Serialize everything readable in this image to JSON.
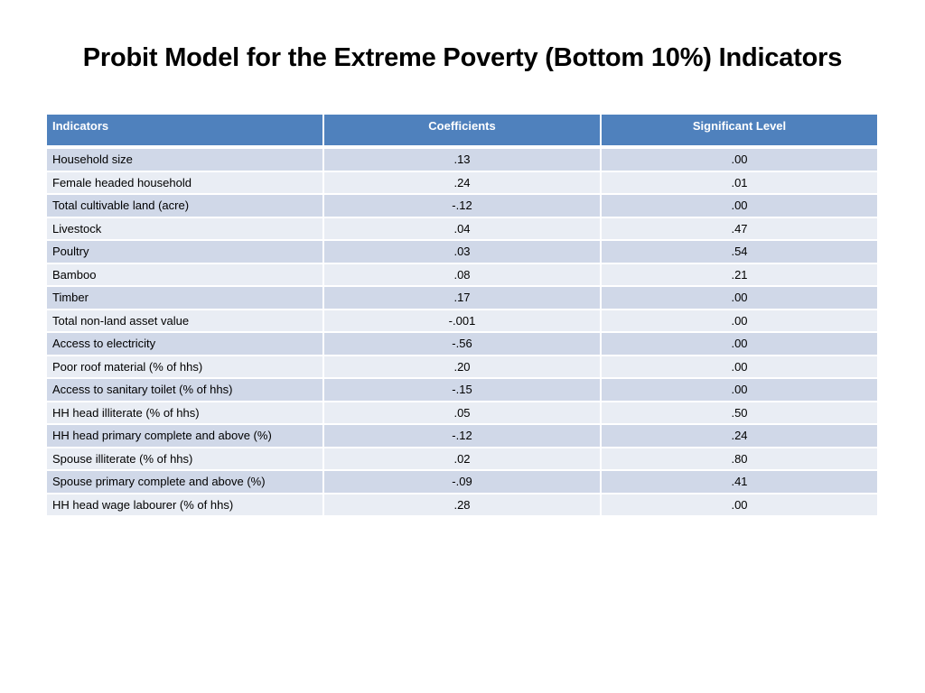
{
  "title": "Probit Model for the Extreme Poverty (Bottom 10%) Indicators",
  "table": {
    "headers": [
      "Indicators",
      "Coefficients",
      "Significant Level"
    ],
    "rows": [
      [
        "Household size",
        ".13",
        ".00"
      ],
      [
        "Female headed household",
        ".24",
        ".01"
      ],
      [
        "Total cultivable land (acre)",
        "-.12",
        ".00"
      ],
      [
        "Livestock",
        ".04",
        ".47"
      ],
      [
        "Poultry",
        ".03",
        ".54"
      ],
      [
        "Bamboo",
        ".08",
        ".21"
      ],
      [
        "Timber",
        ".17",
        ".00"
      ],
      [
        "Total non-land asset value",
        "-.001",
        ".00"
      ],
      [
        "Access to electricity",
        "-.56",
        ".00"
      ],
      [
        "Poor roof material (% of hhs)",
        ".20",
        ".00"
      ],
      [
        "Access to sanitary toilet (% of hhs)",
        "-.15",
        ".00"
      ],
      [
        "HH head illiterate (% of hhs)",
        ".05",
        ".50"
      ],
      [
        "HH head primary complete and above (%)",
        "-.12",
        ".24"
      ],
      [
        "Spouse illiterate (% of hhs)",
        ".02",
        ".80"
      ],
      [
        "Spouse primary complete and above (%)",
        "-.09",
        ".41"
      ],
      [
        "HH head wage labourer (% of hhs)",
        ".28",
        ".00"
      ]
    ]
  },
  "colors": {
    "header_bg": "#4f81bd",
    "row_dark": "#d0d8e8",
    "row_light": "#e9edf4"
  }
}
